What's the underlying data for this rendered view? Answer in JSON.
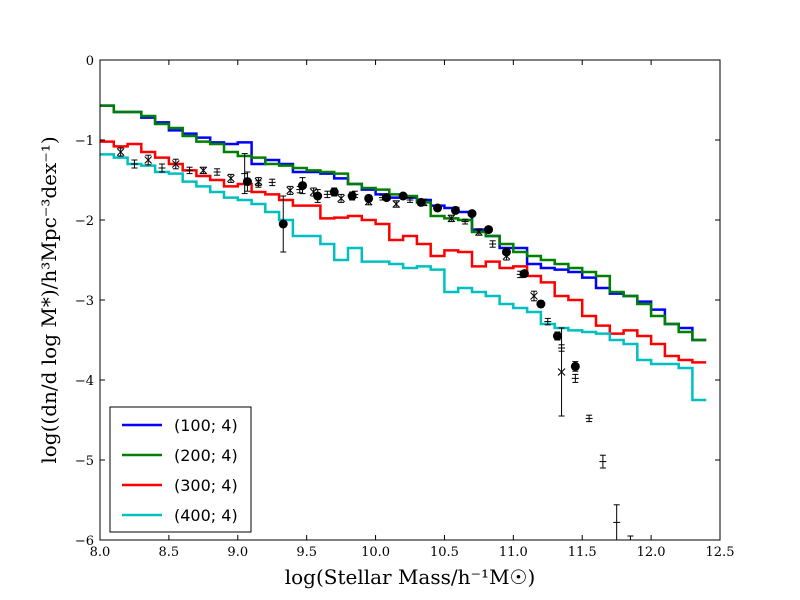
{
  "chart_data": {
    "type": "line",
    "title": "",
    "xlabel": "log(Stellar Mass/h⁻¹M☉)",
    "ylabel": "log((dn/d log M*)/h³Mpc⁻³dex⁻¹)",
    "xlim": [
      8.0,
      12.5
    ],
    "ylim": [
      -6,
      0
    ],
    "xticks": [
      "8.0",
      "8.5",
      "9.0",
      "9.5",
      "10.0",
      "10.5",
      "11.0",
      "11.5",
      "12.0",
      "12.5"
    ],
    "yticks": [
      "0",
      "−1",
      "−2",
      "−3",
      "−4",
      "−5",
      "−6"
    ],
    "legend_position": "lower-left",
    "series": [
      {
        "name": "(100; 4)",
        "color": "#0000ff",
        "x": [
          8.05,
          8.15,
          8.25,
          8.35,
          8.45,
          8.55,
          8.65,
          8.75,
          8.85,
          8.95,
          9.05,
          9.15,
          9.25,
          9.35,
          9.45,
          9.55,
          9.65,
          9.75,
          9.85,
          9.95,
          10.05,
          10.15,
          10.25,
          10.35,
          10.45,
          10.55,
          10.65,
          10.75,
          10.85,
          10.95,
          11.05,
          11.15,
          11.25,
          11.35,
          11.45,
          11.55,
          11.65,
          11.75,
          11.85,
          11.95,
          12.05,
          12.15,
          12.25,
          12.35
        ],
        "y": [
          -0.57,
          -0.65,
          -0.65,
          -0.72,
          -0.78,
          -0.88,
          -0.92,
          -0.97,
          -1.03,
          -1.05,
          -1.03,
          -1.3,
          -1.25,
          -1.3,
          -1.4,
          -1.4,
          -1.42,
          -1.48,
          -1.55,
          -1.62,
          -1.68,
          -1.72,
          -1.72,
          -1.75,
          -1.82,
          -1.85,
          -1.9,
          -2.12,
          -2.2,
          -2.35,
          -2.35,
          -2.55,
          -2.6,
          -2.62,
          -2.65,
          -2.72,
          -2.85,
          -2.92,
          -2.95,
          -3.02,
          -3.12,
          -3.3,
          -3.35,
          -3.5
        ]
      },
      {
        "name": "(200; 4)",
        "color": "#008000",
        "x": [
          8.05,
          8.15,
          8.25,
          8.35,
          8.45,
          8.55,
          8.65,
          8.75,
          8.85,
          8.95,
          9.05,
          9.15,
          9.25,
          9.35,
          9.45,
          9.55,
          9.65,
          9.75,
          9.85,
          9.95,
          10.05,
          10.15,
          10.25,
          10.35,
          10.45,
          10.55,
          10.65,
          10.75,
          10.85,
          10.95,
          11.05,
          11.15,
          11.25,
          11.35,
          11.45,
          11.55,
          11.65,
          11.75,
          11.85,
          11.95,
          12.05,
          12.15,
          12.25,
          12.35
        ],
        "y": [
          -0.57,
          -0.65,
          -0.65,
          -0.7,
          -0.8,
          -0.85,
          -0.95,
          -1.02,
          -1.05,
          -1.15,
          -1.2,
          -1.22,
          -1.3,
          -1.32,
          -1.35,
          -1.38,
          -1.4,
          -1.42,
          -1.55,
          -1.6,
          -1.62,
          -1.68,
          -1.7,
          -1.78,
          -1.95,
          -1.98,
          -2.0,
          -2.15,
          -2.2,
          -2.3,
          -2.4,
          -2.45,
          -2.5,
          -2.55,
          -2.6,
          -2.65,
          -2.7,
          -2.9,
          -2.95,
          -3.05,
          -3.2,
          -3.3,
          -3.4,
          -3.5
        ]
      },
      {
        "name": "(300; 4)",
        "color": "#ff0000",
        "x": [
          8.05,
          8.15,
          8.25,
          8.35,
          8.45,
          8.55,
          8.65,
          8.75,
          8.85,
          8.95,
          9.05,
          9.15,
          9.25,
          9.35,
          9.45,
          9.55,
          9.65,
          9.75,
          9.85,
          9.95,
          10.05,
          10.15,
          10.25,
          10.35,
          10.45,
          10.55,
          10.65,
          10.75,
          10.85,
          10.95,
          11.05,
          11.15,
          11.25,
          11.35,
          11.45,
          11.55,
          11.65,
          11.75,
          11.85,
          11.95,
          12.05,
          12.15,
          12.25,
          12.35
        ],
        "y": [
          -1.02,
          -1.08,
          -1.05,
          -1.15,
          -1.22,
          -1.3,
          -1.38,
          -1.45,
          -1.5,
          -1.58,
          -1.55,
          -1.65,
          -1.68,
          -1.75,
          -1.82,
          -1.82,
          -1.98,
          -1.97,
          -1.95,
          -2.0,
          -2.05,
          -2.25,
          -2.2,
          -2.3,
          -2.45,
          -2.38,
          -2.4,
          -2.58,
          -2.52,
          -2.6,
          -2.58,
          -2.7,
          -2.78,
          -2.95,
          -3.0,
          -3.2,
          -3.32,
          -3.42,
          -3.38,
          -3.45,
          -3.55,
          -3.7,
          -3.75,
          -3.78
        ]
      },
      {
        "name": "(400; 4)",
        "color": "#00bfbf",
        "x": [
          8.05,
          8.15,
          8.25,
          8.35,
          8.45,
          8.55,
          8.65,
          8.75,
          8.85,
          8.95,
          9.05,
          9.15,
          9.25,
          9.35,
          9.45,
          9.55,
          9.65,
          9.75,
          9.85,
          9.95,
          10.05,
          10.15,
          10.25,
          10.35,
          10.45,
          10.55,
          10.65,
          10.75,
          10.85,
          10.95,
          11.05,
          11.15,
          11.25,
          11.35,
          11.45,
          11.55,
          11.65,
          11.75,
          11.85,
          11.95,
          12.05,
          12.15,
          12.25,
          12.35
        ],
        "y": [
          -1.18,
          -1.22,
          -1.3,
          -1.32,
          -1.4,
          -1.42,
          -1.52,
          -1.58,
          -1.65,
          -1.72,
          -1.75,
          -1.8,
          -1.9,
          -2.0,
          -2.2,
          -2.2,
          -2.3,
          -2.5,
          -2.35,
          -2.52,
          -2.52,
          -2.55,
          -2.6,
          -2.58,
          -2.62,
          -2.9,
          -2.85,
          -2.9,
          -2.95,
          -3.05,
          -3.1,
          -3.15,
          -3.3,
          -3.35,
          -3.38,
          -3.4,
          -3.42,
          -3.5,
          -3.55,
          -3.75,
          -3.8,
          -3.8,
          -3.85,
          -4.25
        ]
      }
    ],
    "observations": [
      {
        "marker": "circle",
        "points": [
          {
            "x": 9.07,
            "y": -1.52,
            "err": 0.12
          },
          {
            "x": 9.33,
            "y": -2.05,
            "err": 0.35
          },
          {
            "x": 9.47,
            "y": -1.57,
            "err": 0.1
          },
          {
            "x": 9.58,
            "y": -1.7,
            "err": 0.08
          },
          {
            "x": 9.7,
            "y": -1.65,
            "err": 0.05
          },
          {
            "x": 9.83,
            "y": -1.7,
            "err": 0.05
          },
          {
            "x": 9.95,
            "y": -1.73,
            "err": 0.04
          },
          {
            "x": 10.08,
            "y": -1.72,
            "err": 0.03
          },
          {
            "x": 10.2,
            "y": -1.7,
            "err": 0.03
          },
          {
            "x": 10.33,
            "y": -1.78,
            "err": 0.02
          },
          {
            "x": 10.45,
            "y": -1.85,
            "err": 0.02
          },
          {
            "x": 10.58,
            "y": -1.88,
            "err": 0.02
          },
          {
            "x": 10.7,
            "y": -1.92,
            "err": 0.02
          },
          {
            "x": 10.82,
            "y": -2.12,
            "err": 0.02
          },
          {
            "x": 10.95,
            "y": -2.4,
            "err": 0.03
          },
          {
            "x": 11.08,
            "y": -2.67,
            "err": 0.03
          },
          {
            "x": 11.2,
            "y": -3.05,
            "err": 0.04
          },
          {
            "x": 11.32,
            "y": -3.45,
            "err": 0.05
          },
          {
            "x": 11.45,
            "y": -3.83,
            "err": 0.06
          }
        ]
      },
      {
        "marker": "cross",
        "points": [
          {
            "x": 8.15,
            "y": -1.15,
            "err": 0.05
          },
          {
            "x": 8.35,
            "y": -1.25,
            "err": 0.06
          },
          {
            "x": 8.55,
            "y": -1.3,
            "err": 0.06
          },
          {
            "x": 8.75,
            "y": -1.38,
            "err": 0.04
          },
          {
            "x": 8.95,
            "y": -1.48,
            "err": 0.05
          },
          {
            "x": 9.15,
            "y": -1.52,
            "err": 0.05
          },
          {
            "x": 9.38,
            "y": -1.63,
            "err": 0.05
          },
          {
            "x": 9.55,
            "y": -1.65,
            "err": 0.05
          },
          {
            "x": 9.75,
            "y": -1.73,
            "err": 0.05
          },
          {
            "x": 9.95,
            "y": -1.77,
            "err": 0.04
          },
          {
            "x": 10.15,
            "y": -1.8,
            "err": 0.04
          },
          {
            "x": 10.35,
            "y": -1.78,
            "err": 0.04
          },
          {
            "x": 10.55,
            "y": -1.98,
            "err": 0.04
          },
          {
            "x": 10.75,
            "y": -2.15,
            "err": 0.04
          },
          {
            "x": 10.95,
            "y": -2.45,
            "err": 0.05
          },
          {
            "x": 11.15,
            "y": -2.95,
            "err": 0.06
          },
          {
            "x": 11.35,
            "y": -3.9,
            "err": 0.55
          }
        ]
      },
      {
        "marker": "plus",
        "points": [
          {
            "x": 8.25,
            "y": -1.3,
            "err": 0.05
          },
          {
            "x": 8.45,
            "y": -1.35,
            "err": 0.05
          },
          {
            "x": 8.65,
            "y": -1.38,
            "err": 0.04
          },
          {
            "x": 8.85,
            "y": -1.4,
            "err": 0.04
          },
          {
            "x": 9.05,
            "y": -1.42,
            "err": 0.25
          },
          {
            "x": 9.15,
            "y": -1.55,
            "err": 0.04
          },
          {
            "x": 9.25,
            "y": -1.53,
            "err": 0.04
          },
          {
            "x": 9.45,
            "y": -1.62,
            "err": 0.04
          },
          {
            "x": 9.65,
            "y": -1.68,
            "err": 0.04
          },
          {
            "x": 9.85,
            "y": -1.68,
            "err": 0.04
          },
          {
            "x": 10.05,
            "y": -1.72,
            "err": 0.03
          },
          {
            "x": 10.25,
            "y": -1.75,
            "err": 0.03
          },
          {
            "x": 10.65,
            "y": -2.02,
            "err": 0.03
          },
          {
            "x": 10.85,
            "y": -2.3,
            "err": 0.04
          },
          {
            "x": 11.05,
            "y": -2.68,
            "err": 0.04
          },
          {
            "x": 11.25,
            "y": -3.27,
            "err": 0.04
          },
          {
            "x": 11.35,
            "y": -3.6,
            "err": 0.04
          },
          {
            "x": 11.45,
            "y": -3.98,
            "err": 0.05
          },
          {
            "x": 11.55,
            "y": -4.48,
            "err": 0.04
          },
          {
            "x": 11.65,
            "y": -5.02,
            "err": 0.08
          },
          {
            "x": 11.75,
            "y": -5.78,
            "err": 0.22
          },
          {
            "x": 11.85,
            "y": -6.0,
            "err": 0.05
          }
        ]
      }
    ]
  }
}
